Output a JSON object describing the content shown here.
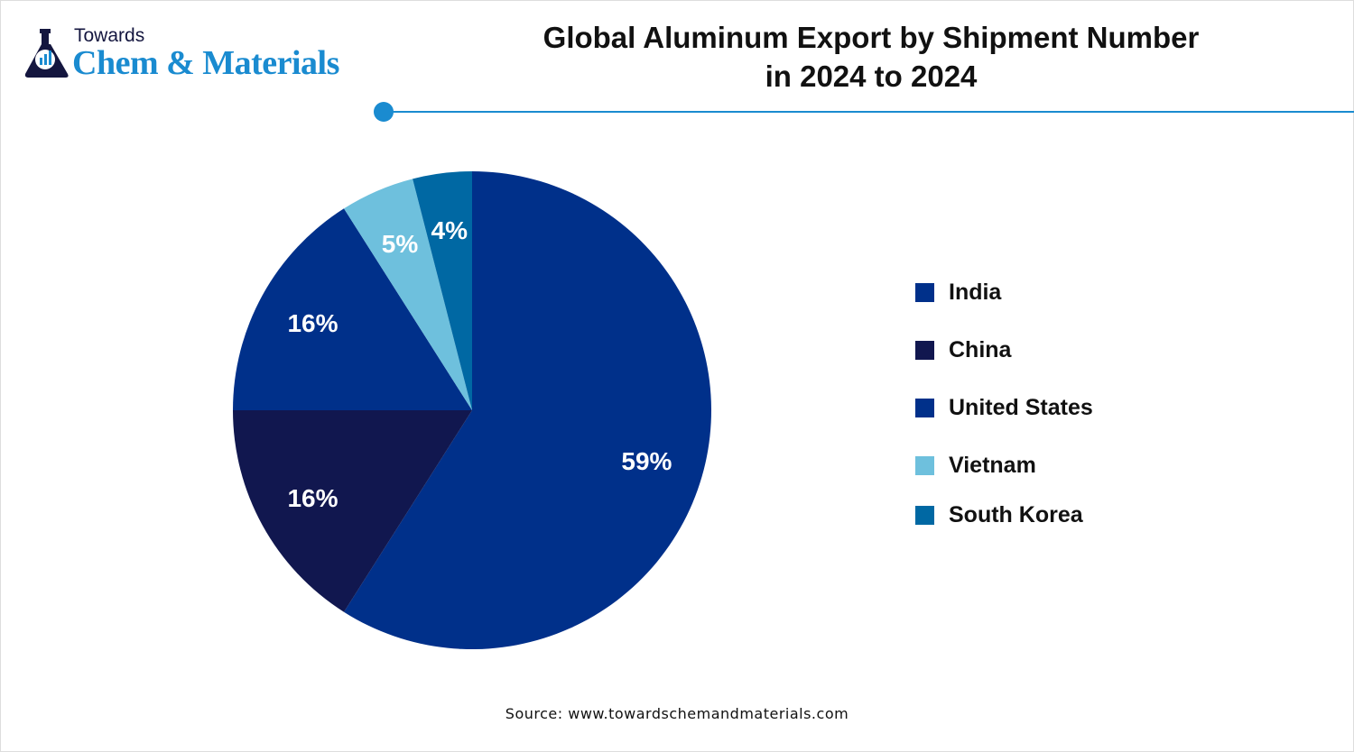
{
  "logo": {
    "line1": "Towards",
    "line2": "Chem & Materials"
  },
  "source": "Source: www.towardschemandmaterials.com",
  "colors": {
    "accent": "#1a8bd0"
  },
  "chart_data": {
    "type": "pie",
    "title_line1": "Global Aluminum Export by Shipment Number",
    "title_line2": "in 2024 to 2024",
    "categories": [
      "India",
      "China",
      "United States",
      "Vietnam",
      "South Korea"
    ],
    "values": [
      59,
      16,
      16,
      5,
      4
    ],
    "labels": [
      "59%",
      "16%",
      "16%",
      "5%",
      "4%"
    ],
    "colors": [
      "#00308a",
      "#11174f",
      "#00308a",
      "#6ec0dd",
      "#0068a3"
    ],
    "start_angle": "12 o'clock",
    "direction": "clockwise",
    "legend_position": "right"
  }
}
